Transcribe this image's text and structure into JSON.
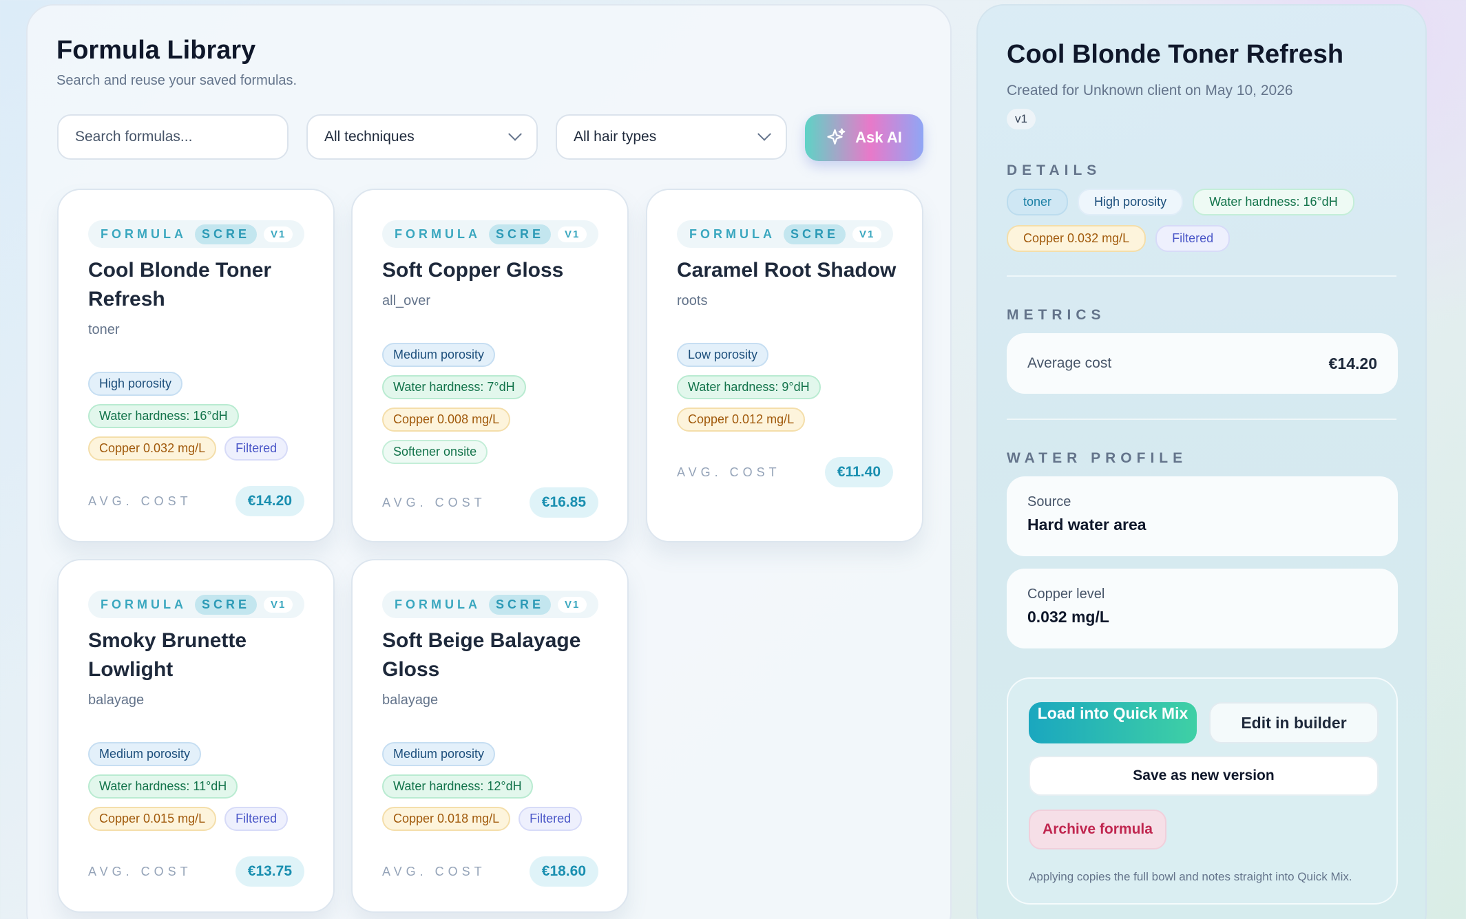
{
  "library": {
    "title": "Formula Library",
    "subtitle": "Search and reuse your saved formulas.",
    "search_placeholder": "Search formulas...",
    "technique_filter": "All techniques",
    "hair_type_filter": "All hair types",
    "ask_ai_label": "Ask AI",
    "card_header": {
      "label": "FORMULA",
      "badge": "SCRE",
      "version": "V1"
    },
    "avg_cost_label": "AVG. COST",
    "cards": [
      {
        "title": "Cool Blonde Toner Refresh",
        "technique": "toner",
        "tags": [
          "High porosity",
          "Water hardness: 16°dH",
          "Copper 0.032 mg/L",
          "Filtered"
        ],
        "price": "€14.20"
      },
      {
        "title": "Soft Copper Gloss",
        "technique": "all_over",
        "tags": [
          "Medium porosity",
          "Water hardness: 7°dH",
          "Copper 0.008 mg/L",
          "Softener onsite"
        ],
        "price": "€16.85"
      },
      {
        "title": "Caramel Root Shadow",
        "technique": "roots",
        "tags": [
          "Low porosity",
          "Water hardness: 9°dH",
          "Copper 0.012 mg/L"
        ],
        "price": "€11.40"
      },
      {
        "title": "Smoky Brunette Lowlight",
        "technique": "balayage",
        "tags": [
          "Medium porosity",
          "Water hardness: 11°dH",
          "Copper 0.015 mg/L",
          "Filtered"
        ],
        "price": "€13.75"
      },
      {
        "title": "Soft Beige Balayage Gloss",
        "technique": "balayage",
        "tags": [
          "Medium porosity",
          "Water hardness: 12°dH",
          "Copper 0.018 mg/L",
          "Filtered"
        ],
        "price": "€18.60"
      }
    ]
  },
  "detail": {
    "title": "Cool Blonde Toner Refresh",
    "subtitle": "Created for Unknown client on May 10, 2026",
    "version": "v1",
    "details_heading": "DETAILS",
    "tags": [
      "toner",
      "High porosity",
      "Water hardness: 16°dH",
      "Copper 0.032 mg/L",
      "Filtered"
    ],
    "metrics_heading": "METRICS",
    "avg_cost_label": "Average cost",
    "avg_cost_value": "€14.20",
    "water_heading": "WATER PROFILE",
    "source_label": "Source",
    "source_value": "Hard water area",
    "copper_label": "Copper level",
    "copper_value": "0.032 mg/L",
    "load_button": "Load into Quick Mix",
    "edit_button": "Edit in builder",
    "save_button": "Save as new version",
    "archive_button": "Archive formula",
    "note": "Applying copies the full bowl and notes straight into Quick Mix."
  },
  "colors": {
    "accent": "#1aa7bf",
    "danger": "#c0264f"
  }
}
